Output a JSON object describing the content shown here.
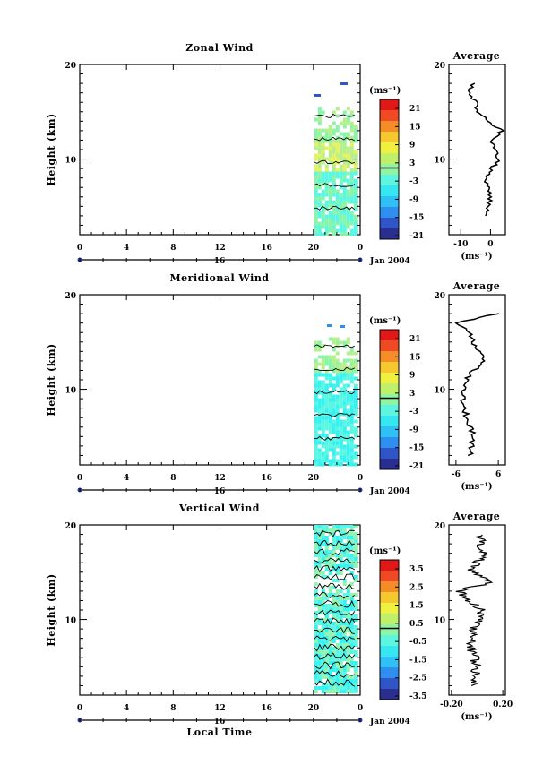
{
  "chart_data": [
    {
      "type": "heatmap",
      "title": "Zonal Wind",
      "ylabel": "Height (km)",
      "ylim": [
        2,
        20
      ],
      "yticks": [
        "10",
        "20"
      ],
      "xlim": [
        0,
        24
      ],
      "xticks": [
        "0",
        "4",
        "8",
        "12",
        "16",
        "20",
        "0"
      ],
      "date_axis": {
        "label": "16",
        "date_text": "Jan 2004"
      },
      "data_hours": [
        20,
        24
      ],
      "colorbar": {
        "unit": "(ms⁻¹)",
        "ticks": [
          "21",
          "15",
          "9",
          "3",
          "-3",
          "-9",
          "-15",
          "-21"
        ]
      },
      "profile": {
        "title": "Average",
        "unit": "(ms⁻¹)",
        "xticks": [
          "-10",
          "0"
        ],
        "yticks": [
          "10",
          "20"
        ],
        "xlim": [
          -14,
          5
        ],
        "height_km": [
          4,
          6,
          8,
          10,
          12,
          13,
          14,
          15,
          16,
          17,
          18
        ],
        "values": [
          -1,
          0,
          -2,
          3,
          0,
          4,
          -1,
          -4,
          -5,
          -7,
          -6
        ]
      }
    },
    {
      "type": "heatmap",
      "title": "Meridional Wind",
      "ylabel": "Height (km)",
      "ylim": [
        2,
        20
      ],
      "yticks": [
        "10",
        "20"
      ],
      "xlim": [
        0,
        24
      ],
      "xticks": [
        "0",
        "4",
        "8",
        "12",
        "16",
        "20",
        "0"
      ],
      "date_axis": {
        "label": "16",
        "date_text": "Jan 2004"
      },
      "data_hours": [
        20,
        24
      ],
      "colorbar": {
        "unit": "(ms⁻¹)",
        "ticks": [
          "21",
          "15",
          "9",
          "3",
          "-3",
          "-9",
          "-15",
          "-21"
        ]
      },
      "profile": {
        "title": "Average",
        "unit": "(ms⁻¹)",
        "xticks": [
          "-6",
          "6"
        ],
        "yticks": [
          "10",
          "20"
        ],
        "xlim": [
          -8,
          8
        ],
        "height_km": [
          3,
          5,
          7,
          9,
          11,
          12,
          13,
          15,
          16,
          17,
          18
        ],
        "values": [
          -2,
          -1,
          -3,
          -4,
          -3,
          -1,
          2,
          -1,
          -2,
          -6,
          6
        ]
      }
    },
    {
      "type": "heatmap",
      "title": "Vertical Wind",
      "ylabel": "Height (km)",
      "xlabel": "Local Time",
      "ylim": [
        2,
        20
      ],
      "yticks": [
        "10",
        "20"
      ],
      "xlim": [
        0,
        24
      ],
      "xticks": [
        "0",
        "4",
        "8",
        "12",
        "16",
        "20",
        "0"
      ],
      "date_axis": {
        "label": "16",
        "date_text": "Jan 2004"
      },
      "data_hours": [
        20,
        24
      ],
      "colorbar": {
        "unit": "(ms⁻¹)",
        "ticks": [
          "3.5",
          "2.5",
          "1.5",
          "0.5",
          "-0.5",
          "-1.5",
          "-2.5",
          "-3.5"
        ]
      },
      "profile": {
        "title": "Average",
        "unit": "(ms⁻¹)",
        "xticks": [
          "-0.20",
          "0.20"
        ],
        "yticks": [
          "10",
          "20"
        ],
        "xlim": [
          -0.22,
          0.22
        ],
        "height_km": [
          3,
          5,
          7,
          9,
          11,
          13,
          14,
          15,
          17,
          19
        ],
        "values": [
          -0.03,
          0.0,
          -0.05,
          -0.02,
          0.03,
          -0.15,
          0.12,
          -0.05,
          0.05,
          0.02
        ]
      }
    }
  ],
  "colors": {
    "zonal_cells": [
      "#5bf7e5",
      "#88f5a8",
      "#b7f08a",
      "#e6f25e"
    ],
    "meridional_cells": [
      "#36f2f0",
      "#5bf7e5",
      "#88f5a8",
      "#b7f08a"
    ],
    "vertical_cells": [
      "#36f2f0",
      "#8ff5b0",
      "#5bf7e5"
    ],
    "colorbar": [
      "#2a2f8f",
      "#2f55c9",
      "#2f8ff0",
      "#2fc0f5",
      "#36e6f0",
      "#5ef5e0",
      "#8ff5a0",
      "#c0f06a",
      "#f0f040",
      "#f5c830",
      "#f58c28",
      "#f04a24",
      "#e01818"
    ]
  }
}
